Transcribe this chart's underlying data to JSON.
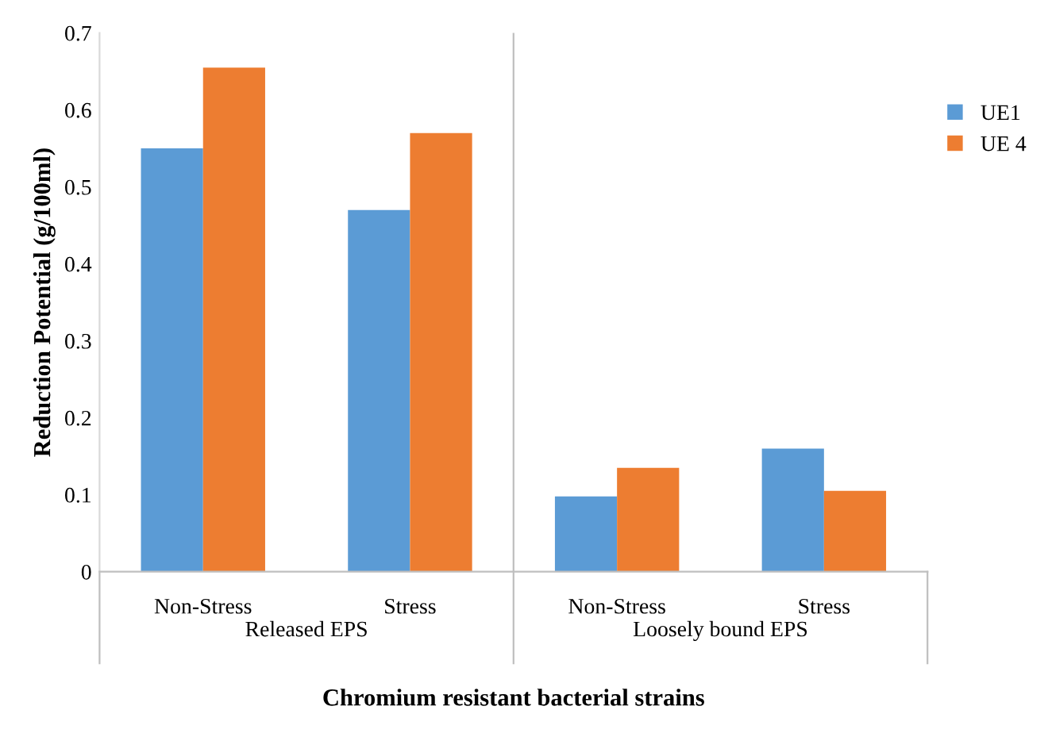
{
  "chart_data": {
    "type": "bar",
    "xlabel": "Chromium resistant bacterial strains",
    "ylabel": "Reduction Potential (g/100ml)",
    "categories": [
      "Non-Stress",
      "Stress",
      "Non-Stress",
      "Stress"
    ],
    "annotations": [
      "Released EPS",
      "Loosely bound EPS"
    ],
    "series": [
      {
        "name": "UE1",
        "color": "#5b9bd5",
        "values": [
          0.55,
          0.47,
          0.098,
          0.16
        ]
      },
      {
        "name": "UE 4",
        "color": "#ed7d31",
        "values": [
          0.655,
          0.57,
          0.135,
          0.105
        ]
      }
    ],
    "ylim": [
      0,
      0.7
    ],
    "yticks": [
      0,
      0.1,
      0.2,
      0.3,
      0.4,
      0.5,
      0.6,
      0.7
    ],
    "grid": false,
    "legend": "right"
  }
}
